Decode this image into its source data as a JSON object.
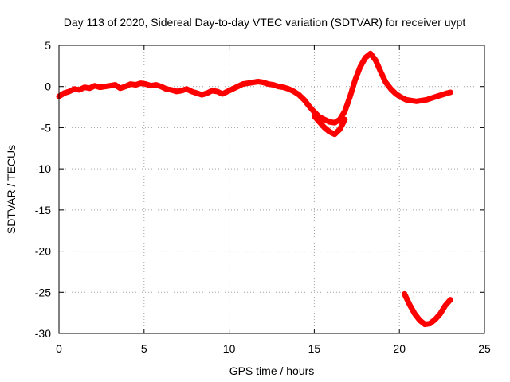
{
  "chart_data": {
    "type": "scatter",
    "title": "Day 113 of 2020, Sidereal Day-to-day VTEC variation (SDTVAR) for receiver uypt",
    "xlabel": "GPS time / hours",
    "ylabel": "SDTVAR / TECUs",
    "xlim": [
      0,
      25
    ],
    "ylim": [
      -30,
      5
    ],
    "xticks": [
      0,
      5,
      10,
      15,
      20,
      25
    ],
    "yticks": [
      -30,
      -25,
      -20,
      -15,
      -10,
      -5,
      0,
      5
    ],
    "grid": true,
    "legend": "none",
    "series_color": "#ff0000",
    "series": [
      {
        "name": "main trace",
        "points": [
          [
            0.0,
            -1.2
          ],
          [
            0.3,
            -0.8
          ],
          [
            0.6,
            -0.6
          ],
          [
            0.9,
            -0.3
          ],
          [
            1.2,
            -0.4
          ],
          [
            1.5,
            -0.1
          ],
          [
            1.8,
            -0.2
          ],
          [
            2.1,
            0.1
          ],
          [
            2.4,
            -0.1
          ],
          [
            2.7,
            0.0
          ],
          [
            3.0,
            0.1
          ],
          [
            3.3,
            0.2
          ],
          [
            3.6,
            -0.2
          ],
          [
            3.9,
            0.0
          ],
          [
            4.2,
            0.3
          ],
          [
            4.5,
            0.2
          ],
          [
            4.8,
            0.4
          ],
          [
            5.1,
            0.3
          ],
          [
            5.4,
            0.1
          ],
          [
            5.7,
            0.2
          ],
          [
            6.0,
            0.0
          ],
          [
            6.3,
            -0.3
          ],
          [
            6.6,
            -0.4
          ],
          [
            6.9,
            -0.6
          ],
          [
            7.2,
            -0.5
          ],
          [
            7.5,
            -0.3
          ],
          [
            7.8,
            -0.6
          ],
          [
            8.1,
            -0.8
          ],
          [
            8.4,
            -1.0
          ],
          [
            8.7,
            -0.8
          ],
          [
            9.0,
            -0.5
          ],
          [
            9.3,
            -0.6
          ],
          [
            9.6,
            -0.9
          ],
          [
            9.9,
            -0.6
          ],
          [
            10.2,
            -0.3
          ],
          [
            10.5,
            0.0
          ],
          [
            10.8,
            0.3
          ],
          [
            11.1,
            0.4
          ],
          [
            11.4,
            0.5
          ],
          [
            11.7,
            0.6
          ],
          [
            12.0,
            0.5
          ],
          [
            12.3,
            0.3
          ],
          [
            12.6,
            0.2
          ],
          [
            12.9,
            0.0
          ],
          [
            13.2,
            -0.1
          ],
          [
            13.5,
            -0.3
          ],
          [
            13.8,
            -0.6
          ],
          [
            14.1,
            -1.0
          ],
          [
            14.4,
            -1.6
          ],
          [
            14.7,
            -2.4
          ],
          [
            15.0,
            -3.1
          ],
          [
            15.3,
            -3.7
          ],
          [
            15.6,
            -4.0
          ],
          [
            15.9,
            -4.3
          ],
          [
            16.2,
            -4.4
          ],
          [
            16.5,
            -4.0
          ],
          [
            16.8,
            -3.0
          ],
          [
            17.1,
            -1.2
          ],
          [
            17.4,
            0.8
          ],
          [
            17.7,
            2.4
          ],
          [
            18.0,
            3.5
          ],
          [
            18.3,
            4.0
          ],
          [
            18.6,
            3.2
          ],
          [
            18.9,
            1.8
          ],
          [
            19.2,
            0.5
          ],
          [
            19.5,
            -0.3
          ],
          [
            19.8,
            -0.9
          ],
          [
            20.1,
            -1.3
          ],
          [
            20.4,
            -1.6
          ],
          [
            20.7,
            -1.7
          ],
          [
            21.0,
            -1.8
          ],
          [
            21.3,
            -1.7
          ],
          [
            21.6,
            -1.6
          ],
          [
            21.9,
            -1.4
          ],
          [
            22.2,
            -1.2
          ],
          [
            22.5,
            -1.0
          ],
          [
            22.8,
            -0.8
          ],
          [
            23.0,
            -0.7
          ]
        ]
      },
      {
        "name": "lower branch",
        "points": [
          [
            15.0,
            -3.6
          ],
          [
            15.3,
            -4.3
          ],
          [
            15.6,
            -5.0
          ],
          [
            15.9,
            -5.5
          ],
          [
            16.2,
            -5.8
          ],
          [
            16.5,
            -5.2
          ],
          [
            16.8,
            -4.0
          ]
        ]
      },
      {
        "name": "bottom arc",
        "points": [
          [
            20.3,
            -25.2
          ],
          [
            20.6,
            -26.5
          ],
          [
            20.9,
            -27.6
          ],
          [
            21.2,
            -28.4
          ],
          [
            21.5,
            -28.9
          ],
          [
            21.8,
            -28.8
          ],
          [
            22.1,
            -28.3
          ],
          [
            22.4,
            -27.6
          ],
          [
            22.7,
            -26.6
          ],
          [
            23.0,
            -25.9
          ]
        ]
      }
    ]
  }
}
